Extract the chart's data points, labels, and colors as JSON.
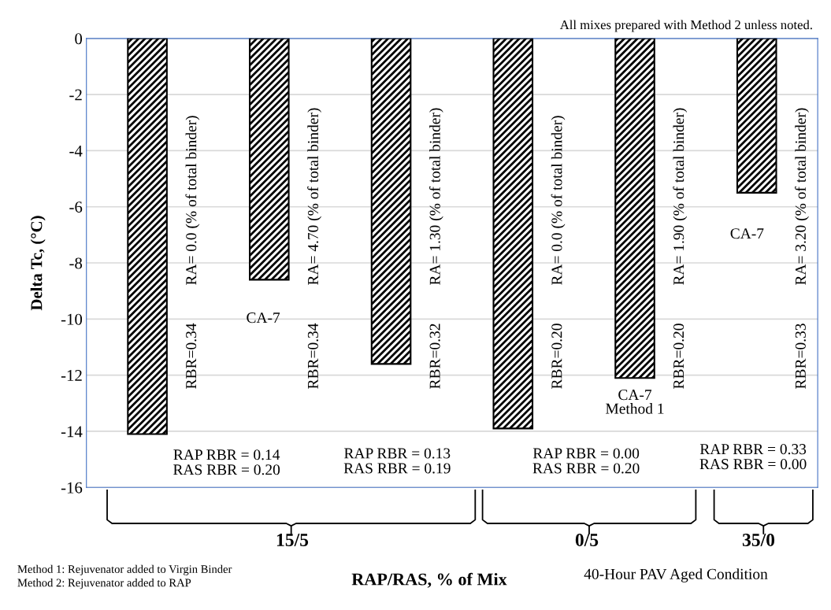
{
  "chart_data": {
    "type": "bar",
    "ylabel": "Delta Tc, (°C)",
    "xlabel": "RAP/RAS, % of Mix",
    "categories": [
      null,
      null,
      null,
      null,
      null,
      null
    ],
    "values": [
      -14.1,
      -8.6,
      -11.6,
      -13.9,
      -12.1,
      -5.5
    ],
    "color": "#000000",
    "ylim": [
      -16,
      0
    ],
    "yticks": [
      0,
      -2,
      -4,
      -6,
      -8,
      -10,
      -12,
      -14,
      -16
    ],
    "grid": "y",
    "annotations": [
      "All mixes prepared with Method 2 unless noted.",
      "RA= 0.0 (% of total binder)",
      "RA= 4.70 (% of total binder)",
      "RA= 1.30 (% of total binder)",
      "RA= 0.0 (% of total binder)",
      "RA= 1.90 (% of total binder)",
      "RA= 3.20 (% of total binder)",
      "RBR=0.34",
      "RBR=0.34",
      "RBR=0.32",
      "RBR=0.20",
      "RBR=0.20",
      "RBR=0.33",
      "CA-7",
      "CA-7\nMethod 1",
      "CA-7",
      "RAP RBR = 0.14\nRAS RBR = 0.20",
      "RAP RBR = 0.13\nRAS RBR = 0.19",
      "RAP RBR = 0.00\nRAS RBR = 0.20",
      "RAP RBR = 0.33\nRAS RBR = 0.00",
      "15/5",
      "0/5",
      "35/0",
      "Method 1: Rejuvenator added to Virgin Binder\nMethod 2: Rejuvenator added to RAP",
      "40-Hour PAV Aged Condition"
    ]
  }
}
